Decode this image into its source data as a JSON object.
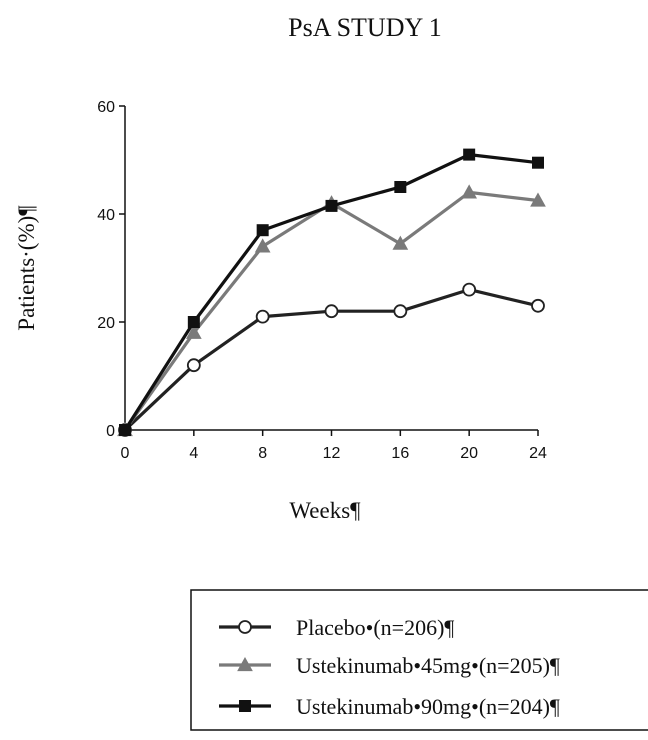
{
  "chart_data": {
    "type": "line",
    "title": "PsA STUDY 1",
    "xlabel": "Weeks¶",
    "ylabel": "Patients·(%)¶",
    "x": [
      0,
      4,
      8,
      12,
      16,
      20,
      24
    ],
    "xlim": [
      0,
      24
    ],
    "ylim": [
      0,
      60
    ],
    "x_ticks": [
      "0",
      "4",
      "8",
      "12",
      "16",
      "20",
      "24"
    ],
    "y_ticks": [
      "0",
      "20",
      "40",
      "60"
    ],
    "grid": false,
    "legend_position": "bottom-right",
    "series": [
      {
        "name": "Placebo•(n=206)¶",
        "values": [
          0,
          12,
          21,
          22,
          22,
          26,
          23
        ],
        "marker": "open-circle",
        "color": "#222222"
      },
      {
        "name": "Ustekinumab•45mg•(n=205)¶",
        "values": [
          0,
          18,
          34,
          42,
          34.5,
          44,
          42.5
        ],
        "marker": "triangle",
        "color": "#7a7a7a"
      },
      {
        "name": "Ustekinumab•90mg•(n=204)¶",
        "values": [
          0,
          20,
          37,
          41.5,
          45,
          51,
          49.5
        ],
        "marker": "square",
        "color": "#111111"
      }
    ]
  }
}
